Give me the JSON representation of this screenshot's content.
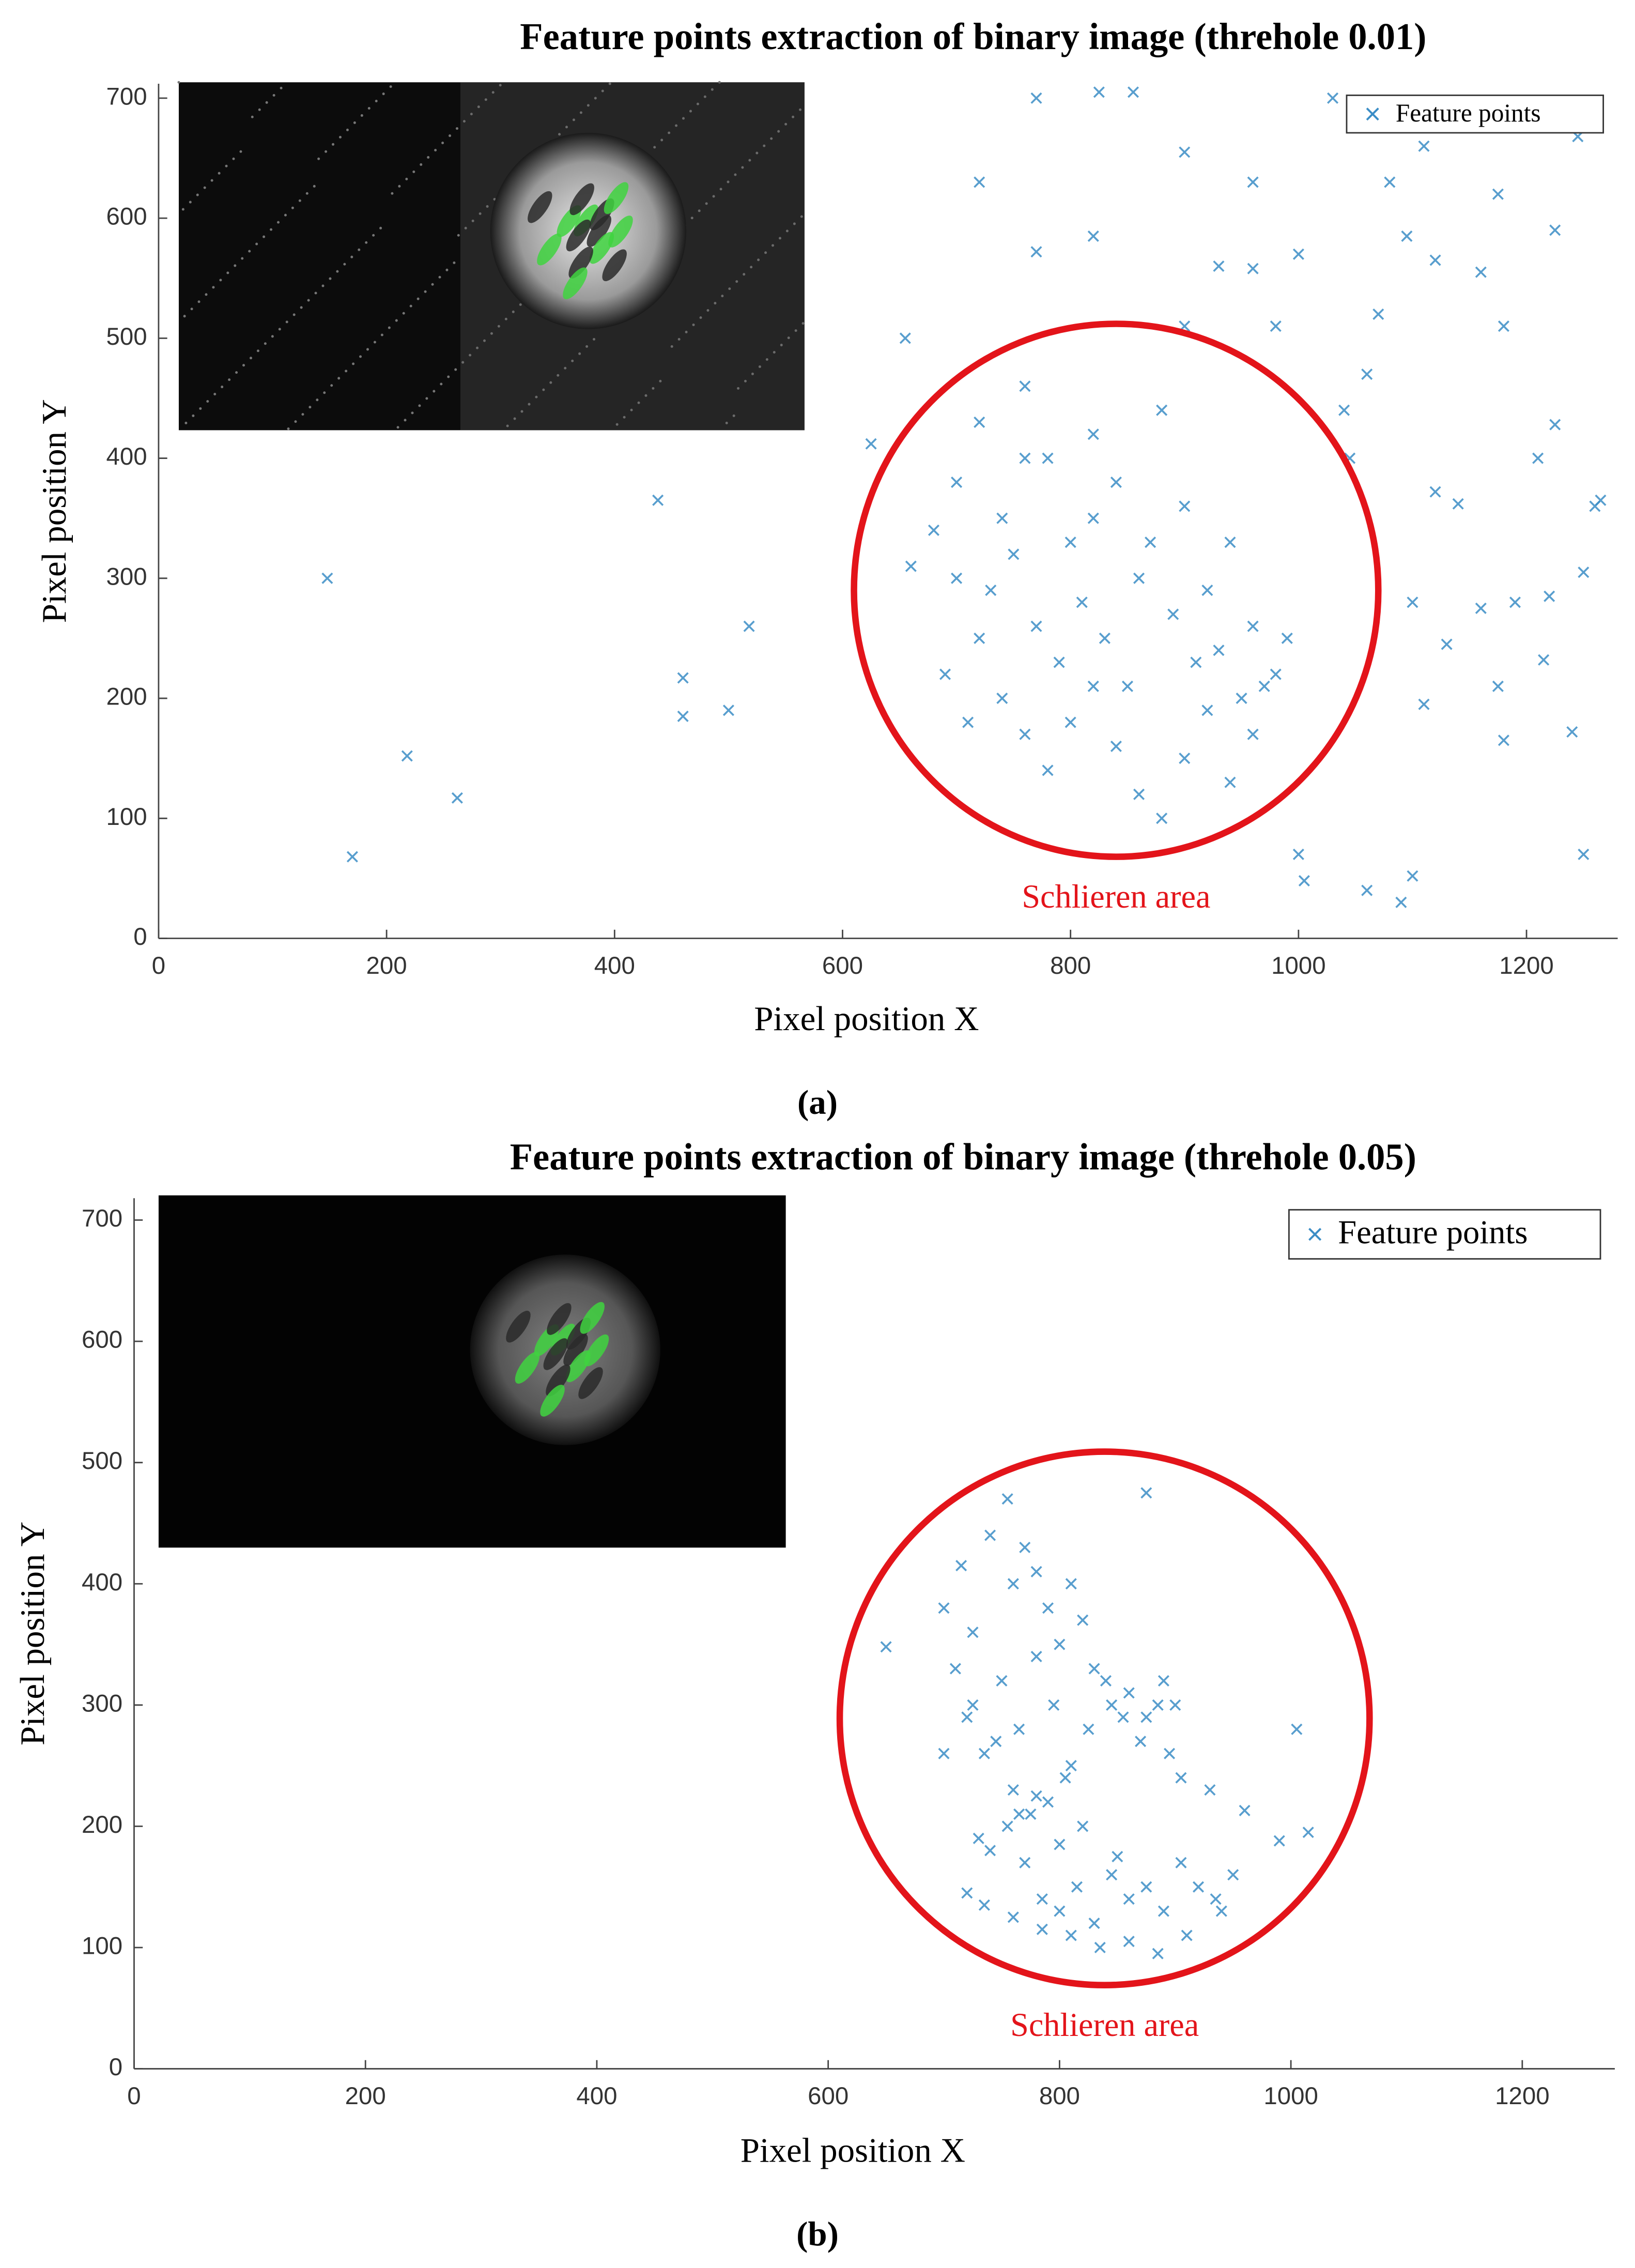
{
  "chart_data": [
    {
      "type": "scatter",
      "title": "Feature points extraction of binary image (threhole 0.01)",
      "xlabel": "Pixel position X",
      "ylabel": "Pixel position Y",
      "caption": "(a)",
      "xlim": [
        0,
        1280
      ],
      "ylim": [
        0,
        712
      ],
      "xticks": [
        0,
        200,
        400,
        600,
        800,
        1000,
        1200
      ],
      "yticks": [
        0,
        100,
        200,
        300,
        400,
        500,
        600,
        700
      ],
      "grid": false,
      "legend": "upper right",
      "series": [
        {
          "name": "Feature points",
          "color": "#3b8dc6",
          "x": [
            148,
            170,
            218,
            262,
            438,
            460,
            460,
            500,
            518,
            625,
            655,
            720,
            770,
            770,
            820,
            825,
            855,
            900,
            960,
            1030,
            1080,
            1095,
            1110,
            1120,
            1160,
            1175,
            1180,
            1210,
            1225,
            1225,
            1245,
            1260,
            1265,
            1250,
            1220,
            1190,
            1160,
            1175,
            1180,
            1215,
            1240,
            1250,
            1100,
            1090,
            1060,
            1000,
            1005,
            1110,
            1100,
            1120,
            1140,
            1130,
            1060,
            1045,
            1070,
            1000,
            960,
            930,
            900,
            980,
            1040,
            700,
            720,
            740,
            760,
            780,
            800,
            820,
            840,
            860,
            880,
            900,
            920,
            940,
            960,
            980,
            700,
            720,
            740,
            760,
            780,
            800,
            820,
            840,
            860,
            880,
            900,
            920,
            940,
            960,
            690,
            710,
            730,
            750,
            770,
            790,
            810,
            830,
            850,
            870,
            890,
            910,
            930,
            950,
            970,
            990,
            660,
            680,
            760,
            820
          ],
          "values": [
            300,
            68,
            152,
            117,
            365,
            217,
            185,
            190,
            260,
            412,
            500,
            630,
            700,
            572,
            585,
            705,
            705,
            655,
            630,
            700,
            630,
            585,
            660,
            565,
            555,
            620,
            510,
            400,
            590,
            428,
            668,
            360,
            365,
            305,
            285,
            280,
            275,
            210,
            165,
            232,
            172,
            70,
            52,
            30,
            40,
            70,
            48,
            195,
            280,
            372,
            362,
            245,
            470,
            400,
            520,
            570,
            558,
            560,
            510,
            510,
            440,
            380,
            430,
            350,
            460,
            400,
            330,
            420,
            380,
            300,
            440,
            360,
            290,
            330,
            260,
            220,
            300,
            250,
            200,
            170,
            140,
            180,
            210,
            160,
            120,
            100,
            150,
            190,
            130,
            170,
            220,
            180,
            290,
            320,
            260,
            230,
            280,
            250,
            210,
            330,
            270,
            230,
            240,
            200,
            210,
            250,
            310,
            340,
            400,
            350
          ]
        }
      ],
      "highlight": {
        "label": "Schlieren area",
        "cx": 840,
        "cy": 290,
        "rx": 230,
        "ry": 222
      }
    },
    {
      "type": "scatter",
      "title": "Feature points extraction of binary image (threhole 0.05)",
      "xlabel": "Pixel position X",
      "ylabel": "Pixel position Y",
      "caption": "(b)",
      "xlim": [
        0,
        1280
      ],
      "ylim": [
        0,
        718
      ],
      "xticks": [
        0,
        200,
        400,
        600,
        800,
        1000,
        1200
      ],
      "yticks": [
        0,
        100,
        200,
        300,
        400,
        500,
        600,
        700
      ],
      "grid": false,
      "legend": "upper right",
      "series": [
        {
          "name": "Feature points",
          "color": "#3b8dc6",
          "x": [
            650,
            875,
            1005,
            1015,
            990,
            960,
            700,
            715,
            725,
            740,
            755,
            760,
            770,
            780,
            790,
            800,
            810,
            820,
            830,
            845,
            860,
            875,
            890,
            900,
            720,
            735,
            750,
            765,
            780,
            795,
            810,
            825,
            840,
            855,
            870,
            885,
            760,
            775,
            790,
            805,
            700,
            710,
            725,
            745,
            730,
            740,
            755,
            770,
            785,
            800,
            815,
            830,
            845,
            860,
            875,
            890,
            905,
            920,
            935,
            950,
            720,
            735,
            760,
            785,
            810,
            835,
            860,
            885,
            910,
            940,
            765,
            780,
            800,
            820,
            850,
            895,
            905,
            930
          ],
          "values": [
            348,
            475,
            280,
            195,
            188,
            213,
            380,
            415,
            360,
            440,
            470,
            400,
            430,
            410,
            380,
            350,
            400,
            370,
            330,
            300,
            310,
            290,
            320,
            300,
            290,
            260,
            320,
            280,
            340,
            300,
            250,
            280,
            320,
            290,
            270,
            300,
            230,
            210,
            220,
            240,
            260,
            330,
            300,
            270,
            190,
            180,
            200,
            170,
            140,
            130,
            150,
            120,
            160,
            140,
            150,
            130,
            170,
            150,
            140,
            160,
            145,
            135,
            125,
            115,
            110,
            100,
            105,
            95,
            110,
            130,
            210,
            225,
            185,
            200,
            175,
            260,
            240,
            230
          ]
        }
      ],
      "highlight": {
        "label": "Schlieren area",
        "cx": 839,
        "cy": 289,
        "rx": 229,
        "ry": 220
      }
    }
  ]
}
